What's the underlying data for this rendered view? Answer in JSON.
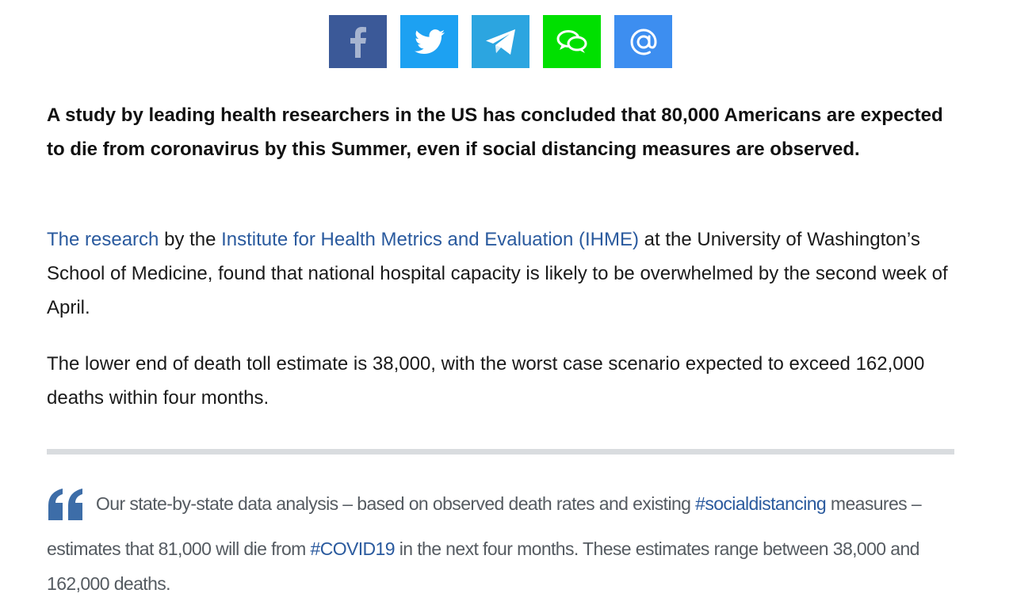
{
  "share": {
    "buttons": [
      {
        "name": "facebook-share-button",
        "icon": "facebook-icon",
        "color": "#3b5998"
      },
      {
        "name": "twitter-share-button",
        "icon": "twitter-bird-icon",
        "color": "#1da1f2"
      },
      {
        "name": "telegram-share-button",
        "icon": "telegram-plane-icon",
        "color": "#2ca5e0"
      },
      {
        "name": "chat-share-button",
        "icon": "chat-bubbles-icon",
        "color": "#00e000"
      },
      {
        "name": "email-share-button",
        "icon": "at-sign-icon",
        "color": "#3d8ef0"
      }
    ]
  },
  "article": {
    "lead": "A study by leading health researchers in the US has concluded that 80,000 Americans are expected to die from coronavirus by this Summer, even if social distancing measures are observed.",
    "p1": {
      "link1": "The research",
      "text1": " by the ",
      "link2": "Institute for Health Metrics and Evaluation (IHME)",
      "text2": " at the University of Washington’s School of Medicine, found that national hospital capacity is likely to be overwhelmed by the second week of April."
    },
    "p2": "The lower end of death toll estimate is 38,000, with the worst case scenario expected to exceed 162,000 deaths within four months."
  },
  "quote": {
    "text1": "Our state-by-state data analysis – based on observed death rates and existing ",
    "hashtag1": "#socialdistancing",
    "text2": " measures – estimates that 81,000 will die from ",
    "hashtag2": "#COVID19",
    "text3": " in the next four months. These estimates range between 38,000 and 162,000 deaths."
  },
  "colors": {
    "link": "#2a5a9e",
    "quote_mark": "#3d6da8",
    "divider": "#d9dcdf"
  }
}
